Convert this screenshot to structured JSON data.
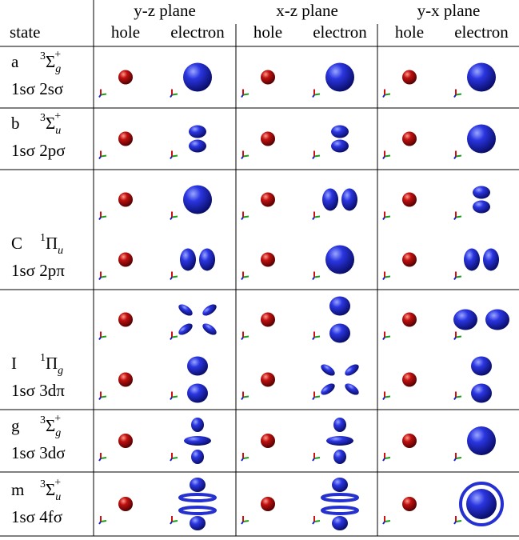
{
  "header": {
    "groups": [
      "y-z plane",
      "x-z plane",
      "y-x plane"
    ],
    "state": "state",
    "hole": [
      "hole",
      "hole",
      "hole"
    ],
    "electron": [
      "electron",
      "electron",
      "electron"
    ]
  },
  "rows": [
    {
      "letter": "a",
      "multiplicity": "3",
      "term": "Σ",
      "parity": "g",
      "reflection": "+",
      "configuration": "1sσ 2sσ"
    },
    {
      "letter": "b",
      "multiplicity": "3",
      "term": "Σ",
      "parity": "u",
      "reflection": "+",
      "configuration": "1sσ 2pσ"
    },
    {
      "letter": "C",
      "multiplicity": "1",
      "term": "Π",
      "parity": "u",
      "configuration": "1sσ 2pπ"
    },
    {
      "letter": "I",
      "multiplicity": "1",
      "term": "Π",
      "parity": "g",
      "configuration": "1sσ 3dπ"
    },
    {
      "letter": "g",
      "multiplicity": "3",
      "term": "Σ",
      "parity": "g",
      "reflection": "+",
      "configuration": "1sσ 3dσ"
    },
    {
      "letter": "m",
      "multiplicity": "3",
      "term": "Σ",
      "parity": "u",
      "reflection": "+",
      "configuration": "1sσ 4fσ"
    }
  ]
}
